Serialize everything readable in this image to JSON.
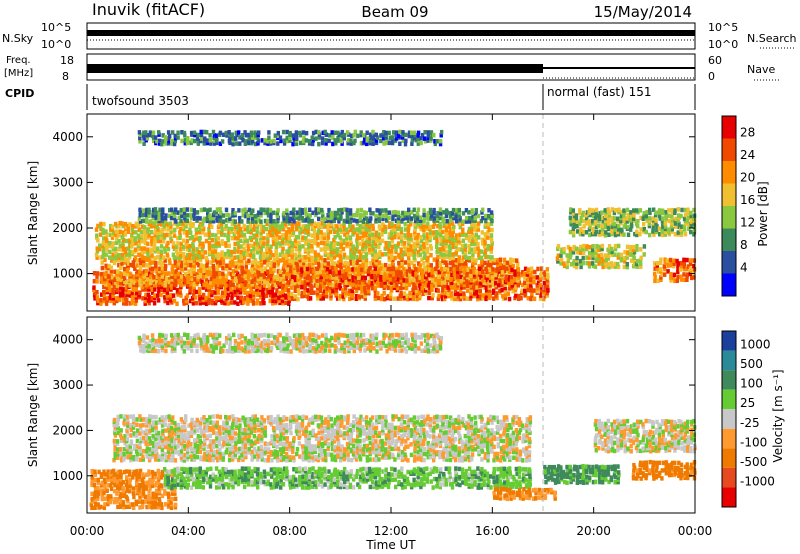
{
  "header": {
    "station": "Inuvik (fitACF)",
    "beam": "Beam 09",
    "date": "15/May/2014"
  },
  "panels": {
    "nsky_label": "N.Sky",
    "nsearch_label": "N.Search",
    "freq_label_1": "Freq.",
    "freq_label_2": "[MHz]",
    "nave_label": "Nave",
    "cpid_label": "CPID",
    "nsky_ticks": [
      "10^5",
      "10^0"
    ],
    "nsearch_ticks": [
      "10^5",
      "10^0"
    ],
    "freq_ticks": [
      "18",
      "8"
    ],
    "nave_ticks": [
      "60",
      "0"
    ],
    "cpid_segments": [
      {
        "label": "twofsound 3503",
        "start_hour": 0,
        "end_hour": 18
      },
      {
        "label": "normal (fast) 151",
        "start_hour": 18,
        "end_hour": 24
      }
    ]
  },
  "axes": {
    "ylabel": "Slant Range [km]",
    "xlabel": "Time UT",
    "x_ticks": [
      "00:00",
      "04:00",
      "08:00",
      "12:00",
      "16:00",
      "20:00",
      "00:00"
    ],
    "y_ticks": [
      "4000",
      "3000",
      "2000",
      "1000"
    ]
  },
  "power_scale": {
    "title": "Power [dB]",
    "ticks": [
      "28",
      "24",
      "20",
      "16",
      "12",
      "8",
      "4"
    ],
    "colors": [
      "#e80000",
      "#f04a00",
      "#ff8c00",
      "#f0c030",
      "#8ac840",
      "#3c8a5a",
      "#2a4fa0",
      "#0000ff"
    ]
  },
  "velocity_scale": {
    "title": "Velocity [m s⁻¹]",
    "ticks": [
      "1000",
      "500",
      "100",
      "25",
      "-25",
      "-100",
      "-500",
      "-1000"
    ],
    "colors": [
      "#1a3f9c",
      "#2a8a9a",
      "#3f8a5a",
      "#66cc33",
      "#c8c8c8",
      "#ff9a30",
      "#f07a00",
      "#e84a20",
      "#e80000"
    ]
  },
  "chart_data": [
    {
      "type": "heatmap",
      "title": "Power [dB]",
      "xlabel": "Time UT",
      "ylabel": "Slant Range [km]",
      "xlim": [
        0,
        24
      ],
      "ylim": [
        180,
        4500
      ],
      "crange": [
        0,
        30
      ],
      "bands": [
        {
          "t0": 0.2,
          "t1": 8.0,
          "r0": 300,
          "r1": 1000,
          "value": 26
        },
        {
          "t0": 0.5,
          "t1": 17.0,
          "r0": 700,
          "r1": 1300,
          "value": 22
        },
        {
          "t0": 8.0,
          "t1": 18.2,
          "r0": 400,
          "r1": 1100,
          "value": 24
        },
        {
          "t0": 0.3,
          "t1": 16.0,
          "r0": 1300,
          "r1": 2100,
          "value": 18
        },
        {
          "t0": 2.0,
          "t1": 16.0,
          "r0": 2100,
          "r1": 2400,
          "value": 10
        },
        {
          "t0": 18.5,
          "t1": 22.0,
          "r0": 1100,
          "r1": 1600,
          "value": 16
        },
        {
          "t0": 19.0,
          "t1": 24.0,
          "r0": 1800,
          "r1": 2400,
          "value": 14
        },
        {
          "t0": 22.3,
          "t1": 24.0,
          "r0": 800,
          "r1": 1300,
          "value": 24
        },
        {
          "t0": 2.0,
          "t1": 14.0,
          "r0": 3800,
          "r1": 4100,
          "value": 8
        }
      ]
    },
    {
      "type": "heatmap",
      "title": "Velocity [m s⁻¹]",
      "xlabel": "Time UT",
      "ylabel": "Slant Range [km]",
      "xlim": [
        0,
        24
      ],
      "ylim": [
        180,
        4500
      ],
      "crange": [
        -1000,
        1000
      ],
      "bands": [
        {
          "t0": 0.1,
          "t1": 3.5,
          "r0": 250,
          "r1": 1100,
          "value": -120
        },
        {
          "t0": 3.0,
          "t1": 17.5,
          "r0": 700,
          "r1": 1150,
          "value": 70
        },
        {
          "t0": 16.0,
          "t1": 18.5,
          "r0": 450,
          "r1": 700,
          "value": -110
        },
        {
          "t0": 1.0,
          "t1": 17.5,
          "r0": 1300,
          "r1": 2300,
          "value": 0
        },
        {
          "t0": 18.0,
          "t1": 21.0,
          "r0": 800,
          "r1": 1200,
          "value": 130
        },
        {
          "t0": 20.0,
          "t1": 24.0,
          "r0": 1500,
          "r1": 2200,
          "value": 0
        },
        {
          "t0": 21.5,
          "t1": 24.0,
          "r0": 900,
          "r1": 1300,
          "value": -150
        },
        {
          "t0": 2.0,
          "t1": 14.0,
          "r0": 3700,
          "r1": 4100,
          "value": 0
        }
      ]
    }
  ]
}
